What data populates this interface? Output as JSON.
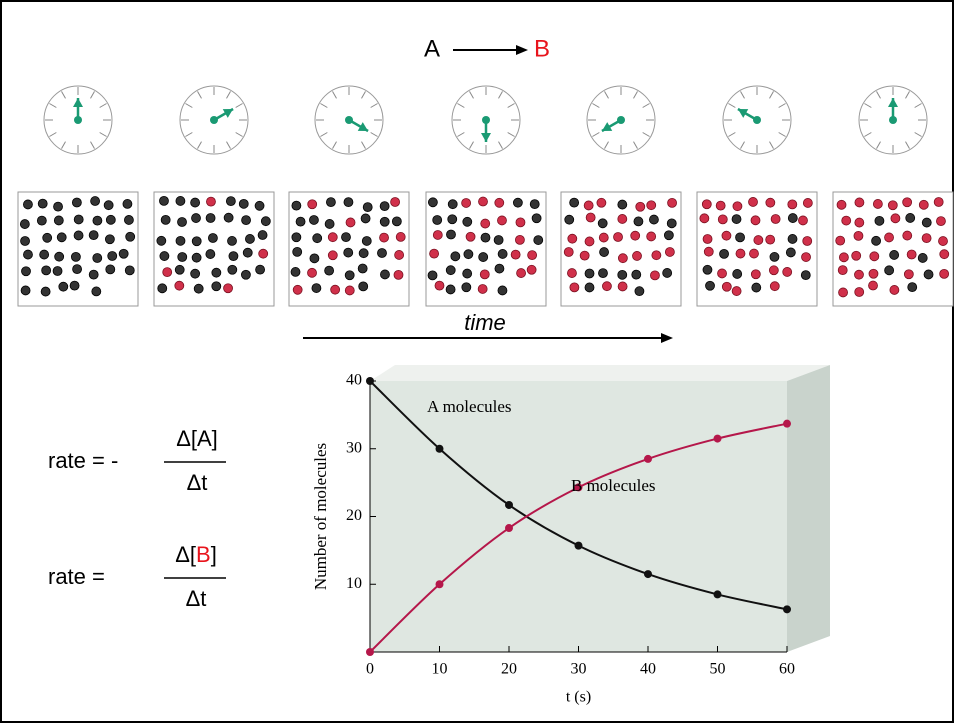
{
  "reaction": {
    "reactant": "A",
    "product": "B"
  },
  "time_label": "time",
  "rate_a": {
    "lhs": "rate = -",
    "num": "Δ[A]",
    "den": "Δt"
  },
  "rate_b": {
    "lhs": "rate =",
    "num_pre": "Δ[",
    "num_species": "B",
    "num_post": "]",
    "den": "Δt"
  },
  "chart_data": {
    "type": "line",
    "x": [
      0,
      10,
      20,
      30,
      40,
      50,
      60
    ],
    "series": [
      {
        "name": "A molecules",
        "color": "#111111",
        "values": [
          40,
          30,
          21.7,
          15.7,
          11.5,
          8.5,
          6.3
        ]
      },
      {
        "name": "B molecules",
        "color": "#b5174a",
        "values": [
          0,
          10,
          18.3,
          24.3,
          28.5,
          31.5,
          33.7
        ]
      }
    ],
    "xlim": [
      0,
      60
    ],
    "xticks": [
      0,
      10,
      20,
      30,
      40,
      50,
      60
    ],
    "ylim": [
      0,
      40
    ],
    "yticks": [
      10,
      20,
      30,
      40
    ],
    "xlabel": "t (s)",
    "ylabel": "Number of molecules"
  }
}
